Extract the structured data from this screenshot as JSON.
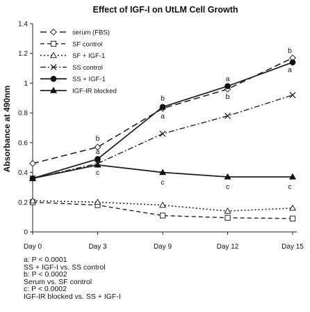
{
  "chart_data": {
    "type": "line",
    "title": "Effect of IGF-I on UtLM Cell Growth",
    "ylabel": "Absorbance at 490nm",
    "xlabel": "",
    "categories": [
      "Day 0",
      "Day 3",
      "Day 9",
      "Day 12",
      "Day 15"
    ],
    "ylim": [
      0,
      1.4
    ],
    "yticks": [
      "0",
      "0.2",
      "0.4",
      "0.6",
      "0.8",
      "1",
      "1.2",
      "1.4"
    ],
    "grid": false,
    "legend_position": "top-left",
    "series": [
      {
        "name": "serum (FBS)",
        "values": [
          0.46,
          0.57,
          0.83,
          0.96,
          1.17
        ],
        "marker": "diamond-open",
        "dash": "long-dash",
        "width": 1.6
      },
      {
        "name": "SF control",
        "values": [
          0.2,
          0.18,
          0.11,
          0.095,
          0.09
        ],
        "marker": "square-open",
        "dash": "dash",
        "width": 1.4
      },
      {
        "name": "SF + IGF-1",
        "values": [
          0.21,
          0.2,
          0.18,
          0.14,
          0.16
        ],
        "marker": "triangle-open",
        "dash": "dot",
        "width": 1.6
      },
      {
        "name": "SS control",
        "values": [
          0.36,
          0.46,
          0.66,
          0.78,
          0.92
        ],
        "marker": "x",
        "dash": "dash-dot",
        "width": 1.4
      },
      {
        "name": "SS + IGF-1",
        "values": [
          0.36,
          0.49,
          0.84,
          0.98,
          1.14
        ],
        "marker": "circle-filled",
        "dash": "solid",
        "width": 1.8
      },
      {
        "name": "IGF-IR blocked",
        "values": [
          0.36,
          0.45,
          0.4,
          0.37,
          0.37
        ],
        "marker": "triangle-filled",
        "dash": "solid",
        "width": 1.8
      }
    ],
    "annotations": [
      {
        "text": "b",
        "x": "Day 3",
        "y": 0.63
      },
      {
        "text": "a",
        "x": "Day 3",
        "y": 0.54
      },
      {
        "text": "c",
        "x": "Day 3",
        "y": 0.4
      },
      {
        "text": "b",
        "x": "Day 9",
        "y": 0.9
      },
      {
        "text": "a",
        "x": "Day 9",
        "y": 0.78
      },
      {
        "text": "c",
        "x": "Day 9",
        "y": 0.335
      },
      {
        "text": "a",
        "x": "Day 12",
        "y": 1.03
      },
      {
        "text": "b",
        "x": "Day 12",
        "y": 0.91
      },
      {
        "text": "c",
        "x": "Day 12",
        "y": 0.305
      },
      {
        "text": "b",
        "x": "Day 15",
        "y": 1.22
      },
      {
        "text": "a",
        "x": "Day 15",
        "y": 1.09
      },
      {
        "text": "c",
        "x": "Day 15",
        "y": 0.305
      }
    ]
  },
  "footnotes": [
    "a: P < 0.0001",
    "SS + IGF-I vs. SS control",
    "b: P < 0.0002",
    "Serum vs. SF control",
    "c: P < 0.0002",
    "IGF-IR blocked vs. SS + IGF-I"
  ]
}
